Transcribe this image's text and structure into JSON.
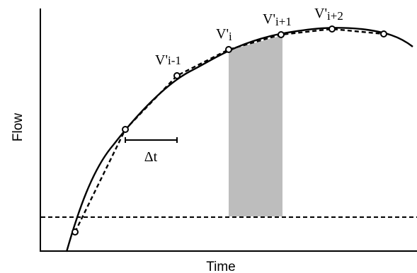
{
  "axes": {
    "x_title": "Time",
    "y_title": "Flow"
  },
  "points": [
    {
      "id": "p1"
    },
    {
      "id": "p2"
    },
    {
      "id": "p3",
      "label_main": "V'",
      "label_sub": "i-1"
    },
    {
      "id": "p4",
      "label_main": "V'",
      "label_sub": "i"
    },
    {
      "id": "p5",
      "label_main": "V'",
      "label_sub": "i+1"
    },
    {
      "id": "p6",
      "label_main": "V'",
      "label_sub": "i+2"
    },
    {
      "id": "p7"
    }
  ],
  "interval": {
    "label": "Δt"
  },
  "colors": {
    "shaded_area": "#bdbdbd",
    "stroke": "#000000",
    "point_fill": "#ffffff"
  }
}
